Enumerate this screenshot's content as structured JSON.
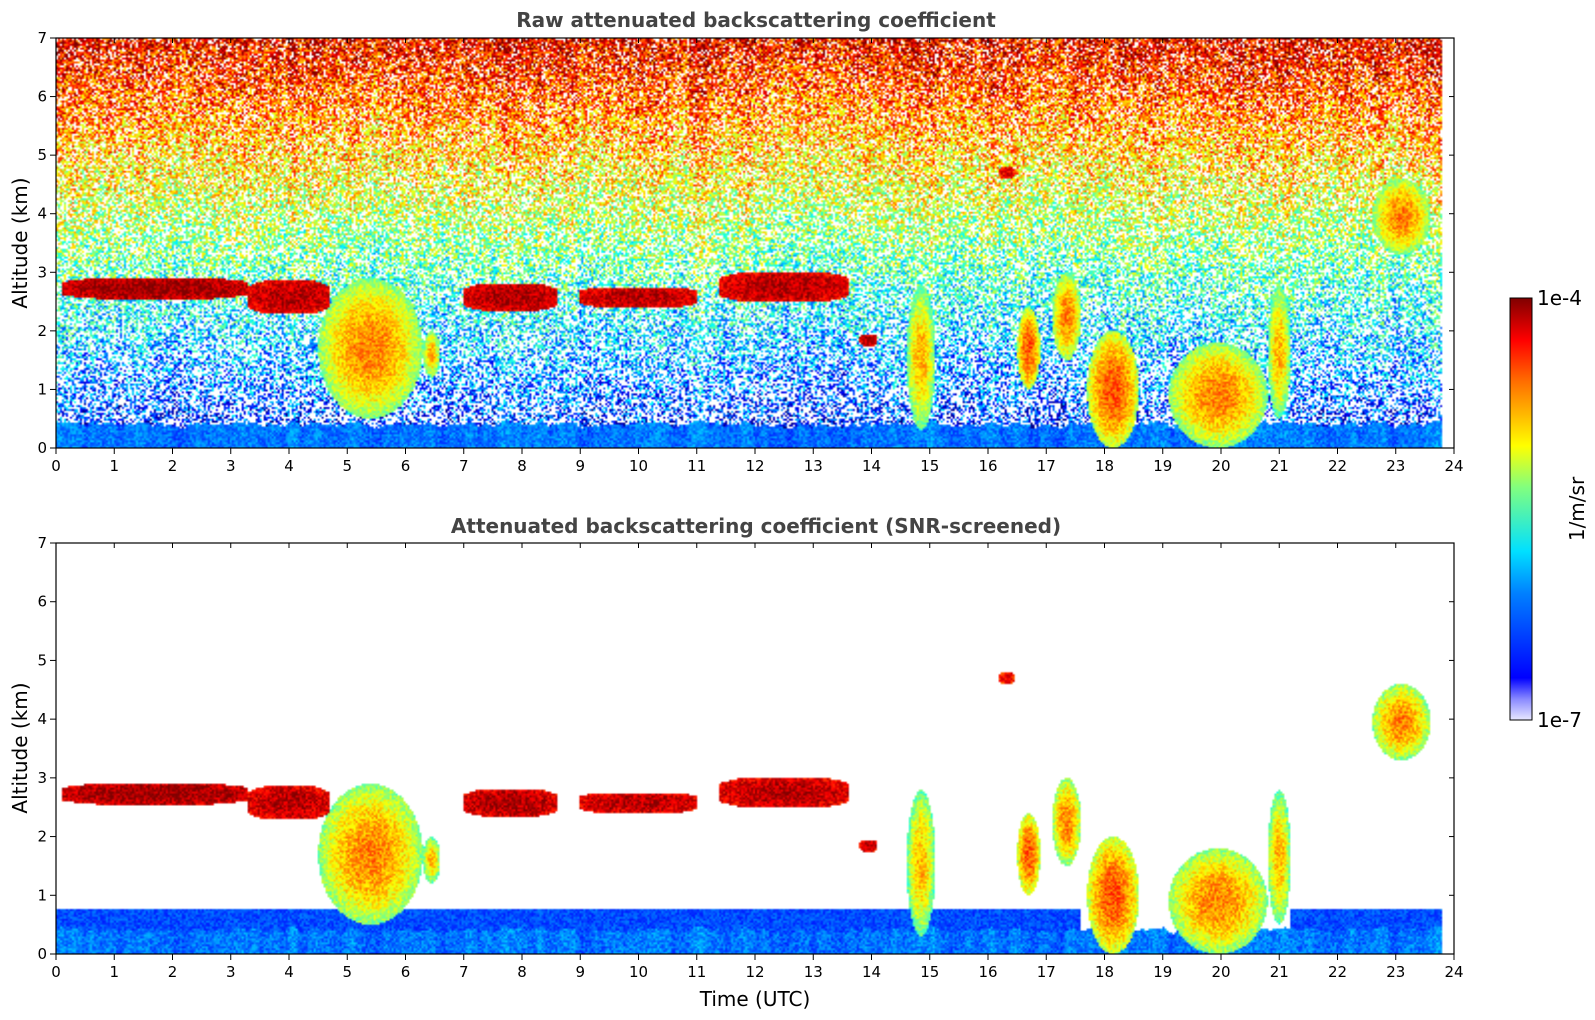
{
  "chart_data": [
    {
      "type": "heatmap",
      "title": "Raw attenuated backscattering coefficient",
      "xlabel": "",
      "ylabel": "Altitude (km)",
      "xlim": [
        0,
        24
      ],
      "ylim": [
        0,
        7
      ],
      "xticks": [
        "0",
        "1",
        "2",
        "3",
        "4",
        "5",
        "6",
        "7",
        "8",
        "9",
        "10",
        "11",
        "12",
        "13",
        "14",
        "15",
        "16",
        "17",
        "18",
        "19",
        "20",
        "21",
        "22",
        "23",
        "24"
      ],
      "yticks": [
        "0",
        "1",
        "2",
        "3",
        "4",
        "5",
        "6",
        "7"
      ],
      "screened": false,
      "features": [
        {
          "kind": "layer",
          "x": [
            0.1,
            3.3
          ],
          "y": [
            2.55,
            2.9
          ],
          "level": 0.98
        },
        {
          "kind": "layer",
          "x": [
            3.3,
            4.7
          ],
          "y": [
            2.3,
            2.85
          ],
          "level": 0.95
        },
        {
          "kind": "layer",
          "x": [
            7.0,
            8.6
          ],
          "y": [
            2.35,
            2.8
          ],
          "level": 0.96
        },
        {
          "kind": "layer",
          "x": [
            9.0,
            11.0
          ],
          "y": [
            2.4,
            2.75
          ],
          "level": 0.95
        },
        {
          "kind": "layer",
          "x": [
            11.4,
            13.6
          ],
          "y": [
            2.5,
            3.0
          ],
          "level": 0.95
        },
        {
          "kind": "layer",
          "x": [
            13.8,
            14.1
          ],
          "y": [
            1.75,
            1.95
          ],
          "level": 0.95
        },
        {
          "kind": "layer",
          "x": [
            16.2,
            16.45
          ],
          "y": [
            4.6,
            4.8
          ],
          "level": 0.9
        },
        {
          "kind": "plume",
          "x": [
            4.5,
            6.3
          ],
          "y": [
            0.5,
            2.9
          ],
          "level": 0.75
        },
        {
          "kind": "plume",
          "x": [
            6.3,
            6.6
          ],
          "y": [
            1.2,
            2.0
          ],
          "level": 0.7
        },
        {
          "kind": "plume",
          "x": [
            14.6,
            15.1
          ],
          "y": [
            0.3,
            2.8
          ],
          "level": 0.7
        },
        {
          "kind": "plume",
          "x": [
            16.5,
            16.9
          ],
          "y": [
            1.0,
            2.4
          ],
          "level": 0.8
        },
        {
          "kind": "plume",
          "x": [
            17.1,
            17.6
          ],
          "y": [
            1.5,
            3.0
          ],
          "level": 0.75
        },
        {
          "kind": "plume",
          "x": [
            17.7,
            18.6
          ],
          "y": [
            0.0,
            2.0
          ],
          "level": 0.8
        },
        {
          "kind": "plume",
          "x": [
            19.1,
            20.8
          ],
          "y": [
            0.0,
            1.8
          ],
          "level": 0.75
        },
        {
          "kind": "plume",
          "x": [
            20.8,
            21.2
          ],
          "y": [
            0.5,
            2.8
          ],
          "level": 0.7
        },
        {
          "kind": "plume",
          "x": [
            22.6,
            23.6
          ],
          "y": [
            3.3,
            4.6
          ],
          "level": 0.75
        }
      ]
    },
    {
      "type": "heatmap",
      "title": "Attenuated backscattering coefficient (SNR-screened)",
      "xlabel": "Time (UTC)",
      "ylabel": "Altitude (km)",
      "xlim": [
        0,
        24
      ],
      "ylim": [
        0,
        7
      ],
      "xticks": [
        "0",
        "1",
        "2",
        "3",
        "4",
        "5",
        "6",
        "7",
        "8",
        "9",
        "10",
        "11",
        "12",
        "13",
        "14",
        "15",
        "16",
        "17",
        "18",
        "19",
        "20",
        "21",
        "22",
        "23",
        "24"
      ],
      "yticks": [
        "0",
        "1",
        "2",
        "3",
        "4",
        "5",
        "6",
        "7"
      ],
      "screened": true
    }
  ],
  "colorbar": {
    "label": "1/m/sr",
    "max_label": "1e-4",
    "min_label": "1e-7",
    "colormap": "jet"
  }
}
